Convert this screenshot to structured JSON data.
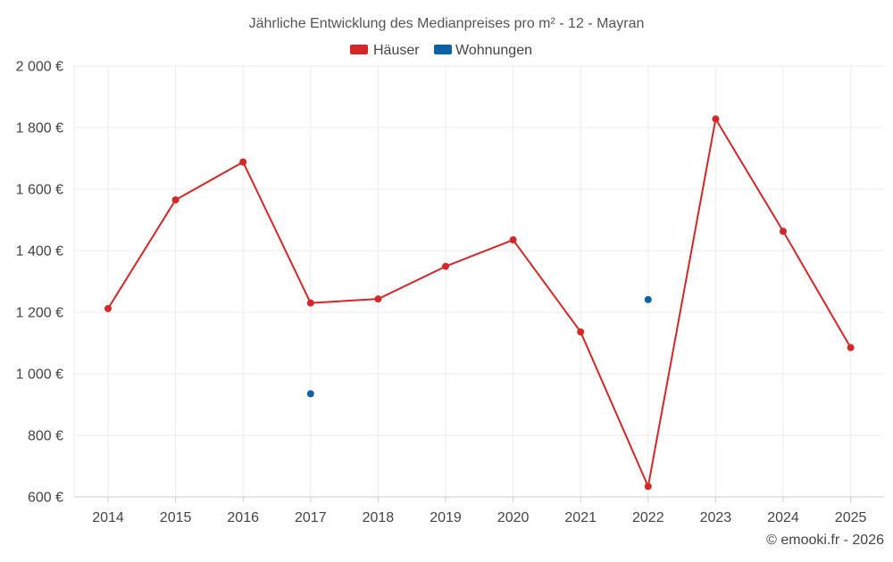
{
  "chart_data": {
    "type": "line",
    "title": "Jährliche Entwicklung des Medianpreises pro m² - 12 - Mayran",
    "categories": [
      "2014",
      "2015",
      "2016",
      "2017",
      "2018",
      "2019",
      "2020",
      "2021",
      "2022",
      "2023",
      "2024",
      "2025"
    ],
    "ylim": [
      600,
      2000
    ],
    "yticks": [
      600,
      800,
      1000,
      1200,
      1400,
      1600,
      1800,
      2000
    ],
    "ytick_labels": [
      "600 €",
      "800 €",
      "1 000 €",
      "1 200 €",
      "1 400 €",
      "1 600 €",
      "1 800 €",
      "2 000 €"
    ],
    "grid": true,
    "legend_position": "top-center",
    "series": [
      {
        "name": "Häuser",
        "color": "#d62728",
        "connected": true,
        "values": [
          1212,
          1565,
          1688,
          1230,
          1243,
          1349,
          1435,
          1136,
          634,
          1828,
          1463,
          1085
        ]
      },
      {
        "name": "Wohnungen",
        "color": "#0b62a4",
        "connected": false,
        "values": [
          null,
          null,
          null,
          935,
          null,
          null,
          null,
          null,
          1241,
          null,
          null,
          null
        ]
      }
    ],
    "credit": "© emooki.fr - 2026"
  }
}
